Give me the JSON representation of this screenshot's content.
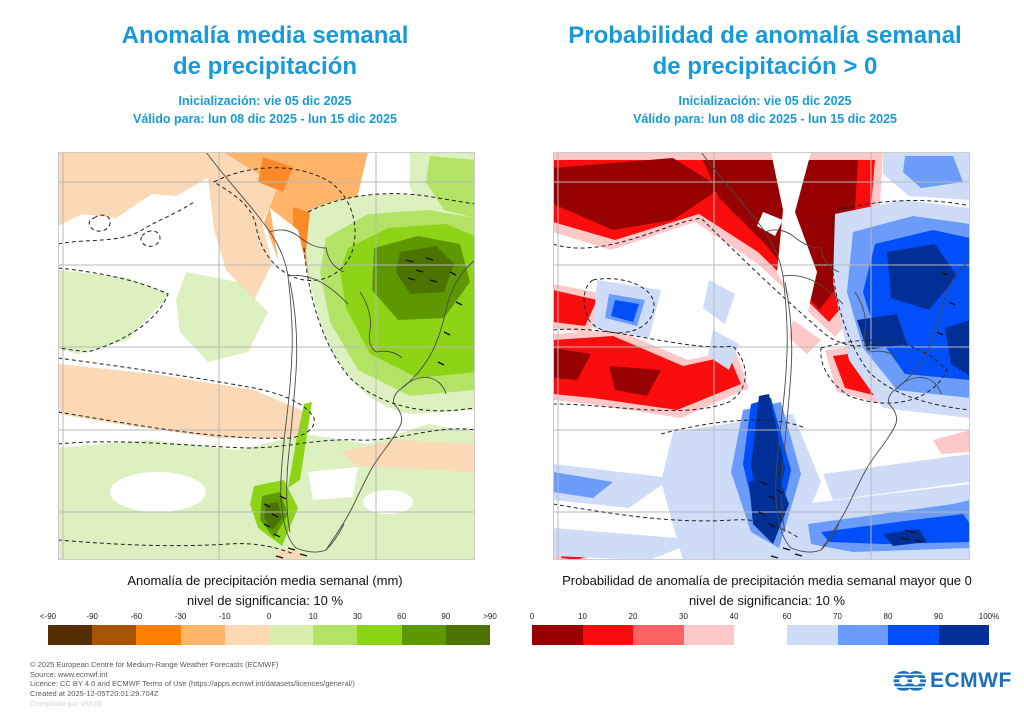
{
  "colors": {
    "title_blue": "#189AD8",
    "logo_blue": "#1D70B7",
    "grid_gray": "#b8b8b8",
    "border_gray": "#4a4a4a"
  },
  "left_panel": {
    "title_line1": "Anomalía media semanal",
    "title_line2": "de precipitación",
    "init_line": "Inicialización: vie 05 dic 2025",
    "valid_line": "Válido para: lun 08 dic 2025 - lun 15 dic 2025",
    "caption_line1": "Anomalía de precipitación media semanal (mm)",
    "caption_line2": "nivel de significancia: 10 %",
    "colorbar": {
      "tick_labels": [
        "<-90",
        "-90",
        "-60",
        "-30",
        "-10",
        "0",
        "10",
        "30",
        "60",
        "90",
        ">90"
      ],
      "segment_colors": [
        "#552D03",
        "#A85503",
        "#FF8000",
        "#FFB469",
        "#FFD9B3",
        "#D9F0AC",
        "#B3E364",
        "#8CD415",
        "#5D9803",
        "#4C7300"
      ]
    }
  },
  "right_panel": {
    "title_line1": "Probabilidad de anomalía semanal",
    "title_line2": "de precipitación > 0",
    "init_line": "Inicialización: vie 05 dic 2025",
    "valid_line": "Válido para: lun 08 dic 2025 - lun 15 dic 2025",
    "caption_line1": "Probabilidad de anomalía de precipitación media semanal mayor que 0",
    "caption_line2": "nivel de significancia: 10 %",
    "colorbar_red": {
      "tick_labels": [
        "0",
        "10",
        "20",
        "30",
        "40"
      ],
      "segment_colors": [
        "#980101",
        "#FB0D0D",
        "#FB6464",
        "#FEC8C8"
      ]
    },
    "colorbar_blue": {
      "tick_labels": [
        "60",
        "70",
        "80",
        "90",
        "100%"
      ],
      "segment_colors": [
        "#CEDCF8",
        "#6B9BFB",
        "#004FFB",
        "#003097"
      ]
    }
  },
  "footer": {
    "copyright": "© 2025 European Centre for Medium-Range Weather Forecasts (ECMWF)",
    "source": "Source: www.ecmwf.int",
    "licence": "Licence: CC BY 4.0 and ECMWF Terms of Use (https://apps.ecmwf.int/datasets/licences/general/)",
    "created": "Created at 2025-12-05T20:01:29.704Z",
    "compiled": "Compilado por VVUG",
    "logo_text": "ECMWF"
  },
  "chart_data": [
    {
      "type": "heatmap",
      "title": "Anomalía media semanal de precipitación",
      "subtitle": [
        "Inicialización: vie 05 dic 2025",
        "Válido para: lun 08 dic 2025 - lun 15 dic 2025"
      ],
      "legend_label": "Anomalía de precipitación media semanal (mm)",
      "significance_note": "nivel de significancia: 10 %",
      "units": "mm",
      "bin_edges": [
        "<-90",
        -90,
        -60,
        -30,
        -10,
        0,
        10,
        30,
        60,
        90,
        ">90"
      ],
      "bin_colors": [
        "#552D03",
        "#A85503",
        "#FF8000",
        "#FFB469",
        "#FFD9B3",
        "#D9F0AC",
        "#B3E364",
        "#8CD415",
        "#5D9803",
        "#4C7300"
      ],
      "legend_position": "bottom"
    },
    {
      "type": "heatmap",
      "title": "Probabilidad de anomalía semanal de precipitación > 0",
      "subtitle": [
        "Inicialización: vie 05 dic 2025",
        "Válido para: lun 08 dic 2025 - lun 15 dic 2025"
      ],
      "legend_label": "Probabilidad de anomalía de precipitación media semanal mayor que 0",
      "significance_note": "nivel de significancia: 10 %",
      "units": "%",
      "bin_edges_low": [
        0,
        10,
        20,
        30,
        40
      ],
      "bin_colors_low": [
        "#980101",
        "#FB0D0D",
        "#FB6464",
        "#FEC8C8"
      ],
      "bin_edges_high": [
        60,
        70,
        80,
        90,
        100
      ],
      "bin_colors_high": [
        "#CEDCF8",
        "#6B9BFB",
        "#004FFB",
        "#003097"
      ],
      "legend_position": "bottom"
    }
  ]
}
